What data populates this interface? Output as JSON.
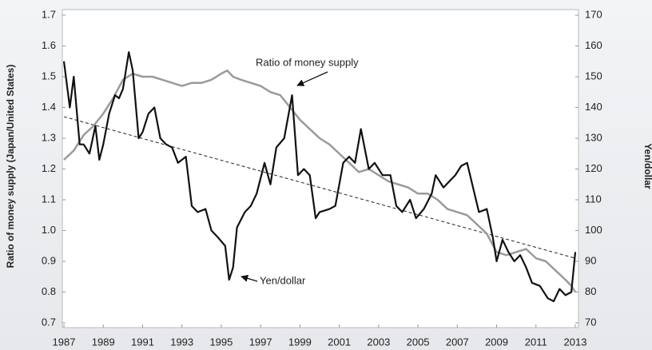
{
  "chart_data": {
    "type": "line",
    "y_label": "Ratio of money supply (Japan/United States)",
    "y2_label": "Yen/dollar",
    "xlim": [
      1987,
      2013
    ],
    "xticks": [
      1987,
      1989,
      1991,
      1993,
      1995,
      1997,
      1999,
      2001,
      2003,
      2005,
      2007,
      2009,
      2011,
      2013
    ],
    "ylim": [
      0.7,
      1.7
    ],
    "yticks": [
      0.7,
      0.8,
      0.9,
      {
        "value": 1,
        "label": "1.0"
      },
      1.1,
      1.2,
      1.3,
      1.4,
      1.5,
      1.6,
      1.7
    ],
    "y2lim": [
      70,
      170
    ],
    "y2ticks": [
      70,
      80,
      90,
      100,
      110,
      120,
      130,
      140,
      150,
      160,
      170
    ],
    "series": [
      {
        "name": "Ratio of money supply",
        "color": "#9a9a9a",
        "axis": "y",
        "x": [
          1987,
          1987.5,
          1988,
          1988.5,
          1989,
          1989.5,
          1990,
          1990.5,
          1991,
          1991.5,
          1992,
          1992.5,
          1993,
          1993.5,
          1994,
          1994.5,
          1995,
          1995.3,
          1995.6,
          1996,
          1996.5,
          1997,
          1997.5,
          1998,
          1998.5,
          1999,
          1999.5,
          2000,
          2000.5,
          2001,
          2001.5,
          2002,
          2002.5,
          2003,
          2003.5,
          2004,
          2004.5,
          2005,
          2005.5,
          2006,
          2006.5,
          2007,
          2007.5,
          2008,
          2008.5,
          2009,
          2009.5,
          2010,
          2010.5,
          2011,
          2011.5,
          2012,
          2012.5,
          2012.8,
          2013
        ],
        "values": [
          1.23,
          1.26,
          1.31,
          1.34,
          1.38,
          1.43,
          1.49,
          1.51,
          1.5,
          1.5,
          1.49,
          1.48,
          1.47,
          1.48,
          1.48,
          1.49,
          1.51,
          1.52,
          1.5,
          1.49,
          1.48,
          1.47,
          1.45,
          1.44,
          1.4,
          1.36,
          1.33,
          1.3,
          1.28,
          1.25,
          1.22,
          1.19,
          1.2,
          1.18,
          1.16,
          1.15,
          1.14,
          1.12,
          1.12,
          1.1,
          1.07,
          1.06,
          1.05,
          1.02,
          0.99,
          0.93,
          0.92,
          0.93,
          0.94,
          0.91,
          0.9,
          0.87,
          0.84,
          0.82,
          0.8
        ]
      },
      {
        "name": "Yen/dollar",
        "color": "#111111",
        "axis": "y2",
        "x": [
          1987.0,
          1987.3,
          1987.5,
          1987.8,
          1988.0,
          1988.3,
          1988.6,
          1988.8,
          1989.0,
          1989.3,
          1989.6,
          1989.8,
          1990.0,
          1990.3,
          1990.5,
          1990.8,
          1991.0,
          1991.3,
          1991.6,
          1991.9,
          1992.2,
          1992.5,
          1992.8,
          1993.2,
          1993.5,
          1993.8,
          1994.2,
          1994.5,
          1994.8,
          1995.2,
          1995.4,
          1995.6,
          1995.8,
          1996.2,
          1996.5,
          1996.8,
          1997.2,
          1997.5,
          1997.8,
          1998.2,
          1998.6,
          1998.9,
          1999.2,
          1999.5,
          1999.8,
          2000.0,
          2000.5,
          2000.8,
          2001.2,
          2001.5,
          2001.8,
          2002.1,
          2002.5,
          2002.8,
          2003.2,
          2003.6,
          2003.9,
          2004.2,
          2004.6,
          2004.9,
          2005.3,
          2005.7,
          2005.9,
          2006.3,
          2006.6,
          2006.9,
          2007.2,
          2007.5,
          2007.8,
          2008.1,
          2008.5,
          2008.8,
          2009.0,
          2009.3,
          2009.6,
          2009.9,
          2010.2,
          2010.5,
          2010.8,
          2011.2,
          2011.6,
          2011.9,
          2012.2,
          2012.5,
          2012.8,
          2013.0
        ],
        "values": [
          155,
          140,
          150,
          128,
          128,
          125,
          134,
          123,
          128,
          138,
          144,
          143,
          146,
          158,
          152,
          130,
          132,
          138,
          140,
          130,
          128,
          127,
          122,
          124,
          108,
          106,
          107,
          100,
          98,
          95,
          84,
          88,
          101,
          106,
          108,
          112,
          122,
          115,
          127,
          130,
          144,
          118,
          120,
          118,
          104,
          106,
          107,
          108,
          122,
          124,
          122,
          133,
          120,
          122,
          118,
          118,
          108,
          106,
          110,
          104,
          107,
          112,
          118,
          114,
          116,
          118,
          121,
          122,
          114,
          106,
          107,
          98,
          90,
          97,
          93,
          90,
          92,
          88,
          83,
          82,
          78,
          77,
          81,
          79,
          80,
          93
        ]
      }
    ],
    "trend_line": {
      "x": [
        1987,
        2013
      ],
      "values": [
        1.37,
        0.91
      ]
    }
  }
}
